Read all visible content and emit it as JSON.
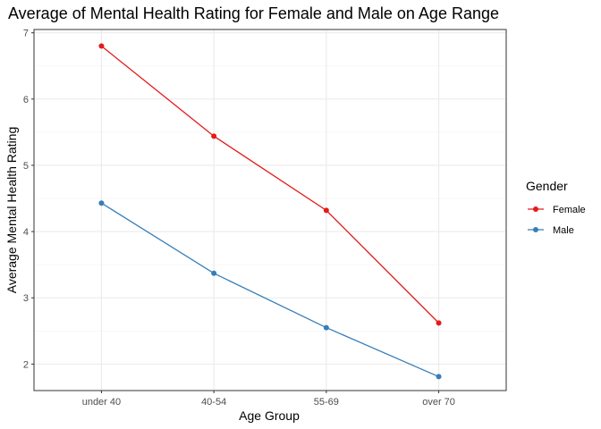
{
  "chart_data": {
    "type": "line",
    "title": "Average of Mental Health Rating for Female and Male on Age Range",
    "xlabel": "Age Group",
    "ylabel": "Average Mental Health Rating",
    "categories": [
      "under 40",
      "40-54",
      "55-69",
      "over 70"
    ],
    "yticks": [
      2,
      3,
      4,
      5,
      6,
      7
    ],
    "ylim": [
      1.6,
      7.05
    ],
    "grid": true,
    "legend": {
      "title": "Gender",
      "placement": "right"
    },
    "series": [
      {
        "name": "Female",
        "color": "#e41a1c",
        "values": [
          6.8,
          5.44,
          4.32,
          2.62
        ]
      },
      {
        "name": "Male",
        "color": "#377eb8",
        "values": [
          4.43,
          3.37,
          2.55,
          1.81
        ]
      }
    ]
  }
}
